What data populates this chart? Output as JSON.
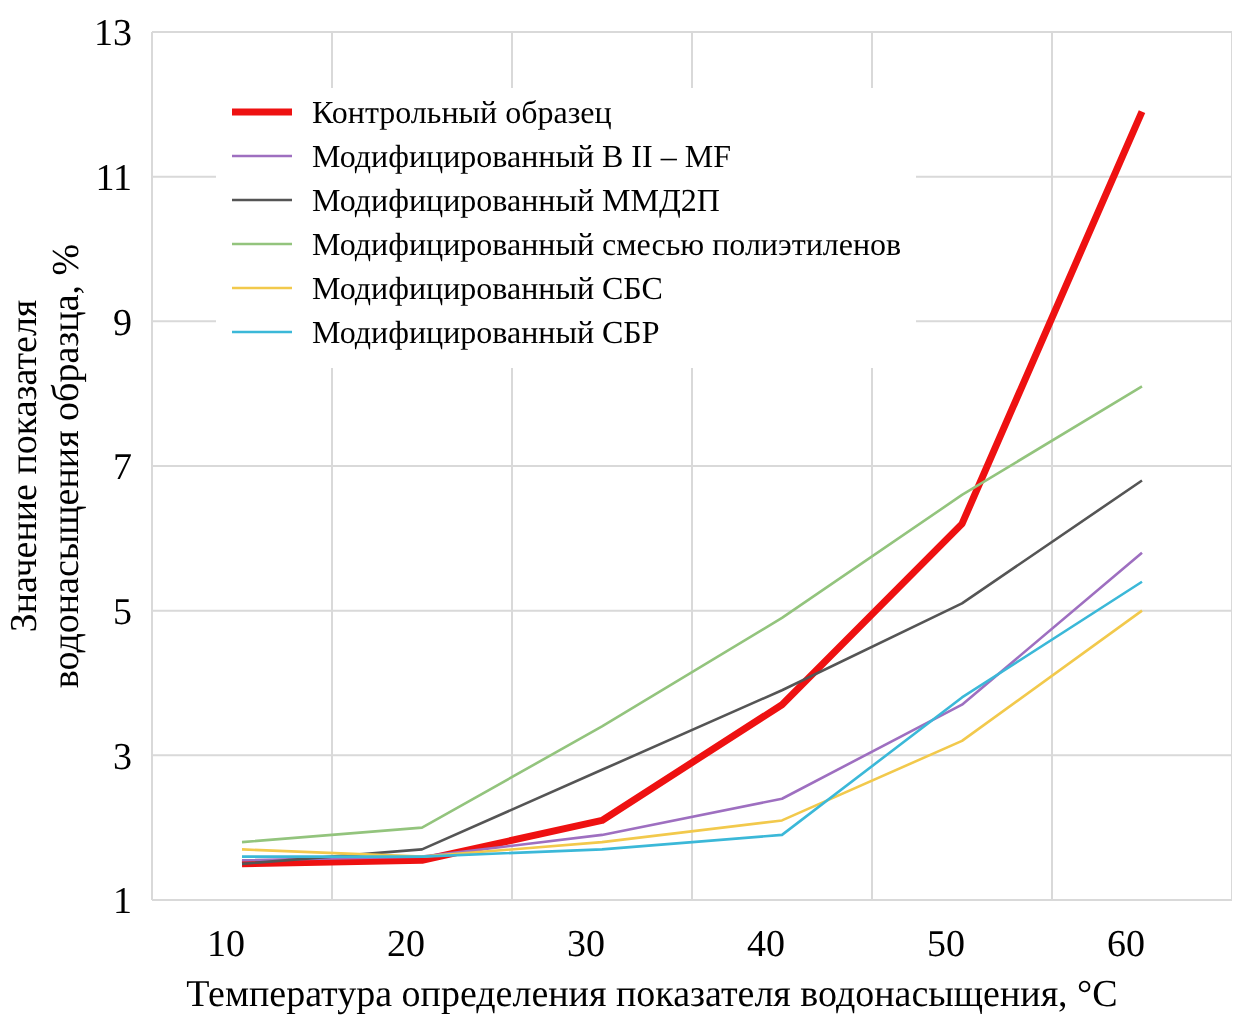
{
  "chart_data": {
    "type": "line",
    "xlabel": "Температура определения показателя водонасыщения, °С",
    "ylabel": "Значение показателя водонасыщения образца, %",
    "categories": [
      "10",
      "20",
      "30",
      "40",
      "50",
      "60"
    ],
    "ylim": [
      1,
      13
    ],
    "yticks": [
      1,
      3,
      5,
      7,
      9,
      11,
      13
    ],
    "grid": true,
    "legend": "top left",
    "marker": "none",
    "line_style": "solid",
    "series": [
      {
        "name": "Контрольный образец",
        "color": "#ee1111",
        "values": [
          1.5,
          1.55,
          2.1,
          3.7,
          6.2,
          11.9
        ]
      },
      {
        "name": "Модифицированный В II – MF",
        "color": "#9e6fc0",
        "values": [
          1.55,
          1.6,
          1.9,
          2.4,
          3.7,
          5.8
        ]
      },
      {
        "name": "Модифицированный ММД2П",
        "color": "#555555",
        "values": [
          1.5,
          1.7,
          2.8,
          3.9,
          5.1,
          6.8
        ]
      },
      {
        "name": "Модифицированный смесью полиэтиленов",
        "color": "#93c47d",
        "values": [
          1.8,
          2.0,
          3.4,
          4.9,
          6.6,
          8.1
        ]
      },
      {
        "name": "Модифицированный СБС",
        "color": "#f2c94c",
        "values": [
          1.7,
          1.6,
          1.8,
          2.1,
          3.2,
          5.0
        ]
      },
      {
        "name": "Модифицированный СБР",
        "color": "#3bb8d8",
        "values": [
          1.6,
          1.6,
          1.7,
          1.9,
          3.8,
          5.4
        ]
      }
    ]
  }
}
